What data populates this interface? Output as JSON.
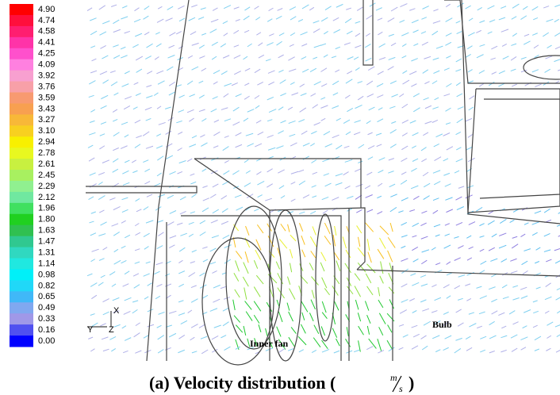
{
  "legend": [
    {
      "label": "4.90",
      "color": "#ff0000"
    },
    {
      "label": "4.74",
      "color": "#ff0f3c"
    },
    {
      "label": "4.58",
      "color": "#ff1e70"
    },
    {
      "label": "4.41",
      "color": "#ff33a8"
    },
    {
      "label": "4.25",
      "color": "#ff50cc"
    },
    {
      "label": "4.09",
      "color": "#ff80e0"
    },
    {
      "label": "3.92",
      "color": "#f8a0d0"
    },
    {
      "label": "3.76",
      "color": "#f8a0a8"
    },
    {
      "label": "3.59",
      "color": "#f89a70"
    },
    {
      "label": "3.43",
      "color": "#f8a050"
    },
    {
      "label": "3.27",
      "color": "#f8b838"
    },
    {
      "label": "3.10",
      "color": "#f8d020"
    },
    {
      "label": "2.94",
      "color": "#f8f000"
    },
    {
      "label": "2.78",
      "color": "#e8f820"
    },
    {
      "label": "2.61",
      "color": "#c8f040"
    },
    {
      "label": "2.45",
      "color": "#a8f060"
    },
    {
      "label": "2.29",
      "color": "#90f090"
    },
    {
      "label": "2.12",
      "color": "#70e8a0"
    },
    {
      "label": "1.96",
      "color": "#40e060"
    },
    {
      "label": "1.80",
      "color": "#20d020"
    },
    {
      "label": "1.63",
      "color": "#30c050"
    },
    {
      "label": "1.47",
      "color": "#30c890"
    },
    {
      "label": "1.31",
      "color": "#30d8c0"
    },
    {
      "label": "1.14",
      "color": "#20e8e0"
    },
    {
      "label": "0.98",
      "color": "#00f0f8"
    },
    {
      "label": "0.82",
      "color": "#20d8f8"
    },
    {
      "label": "0.65",
      "color": "#40b8f8"
    },
    {
      "label": "0.49",
      "color": "#80a8f0"
    },
    {
      "label": "0.33",
      "color": "#a098e8"
    },
    {
      "label": "0.16",
      "color": "#5050f0"
    },
    {
      "label": "0.00",
      "color": "#0000ff"
    }
  ],
  "axes": {
    "x": "X",
    "y": "Y",
    "z": "Z"
  },
  "annotations": [
    "Inner fan",
    "Bulb"
  ],
  "caption": {
    "text": "(a) Velocity distribution (",
    "unit_numerator": "m",
    "unit_denominator": "s",
    "close": ")"
  }
}
